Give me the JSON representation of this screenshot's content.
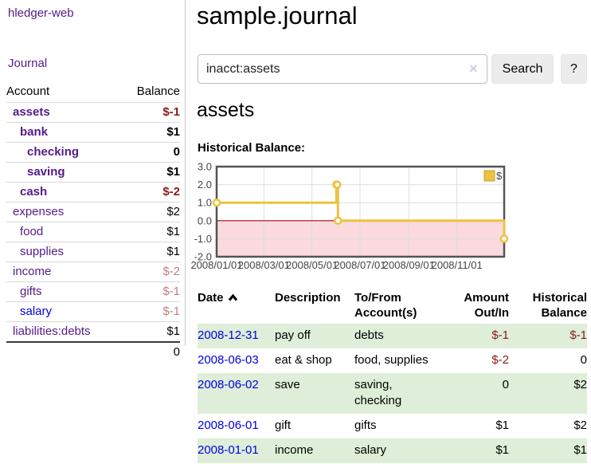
{
  "sidebar": {
    "app_title": "hledger-web",
    "journal_label": "Journal",
    "accounts_table": {
      "headers": {
        "account": "Account",
        "balance": "Balance"
      },
      "rows": [
        {
          "name": "assets",
          "indent": 1,
          "bold": true,
          "balance": "$-1",
          "balance_style": "neg-strong"
        },
        {
          "name": "bank",
          "indent": 2,
          "bold": true,
          "balance": "$1",
          "balance_style": "pos"
        },
        {
          "name": "checking",
          "indent": 3,
          "bold": true,
          "balance": "0",
          "balance_style": "pos"
        },
        {
          "name": "saving",
          "indent": 3,
          "bold": true,
          "balance": "$1",
          "balance_style": "pos"
        },
        {
          "name": "cash",
          "indent": 2,
          "bold": true,
          "balance": "$-2",
          "balance_style": "neg-strong"
        },
        {
          "name": "expenses",
          "indent": 1,
          "bold": false,
          "balance": "$2",
          "balance_style": "pos"
        },
        {
          "name": "food",
          "indent": 2,
          "bold": false,
          "balance": "$1",
          "balance_style": "pos"
        },
        {
          "name": "supplies",
          "indent": 2,
          "bold": false,
          "balance": "$1",
          "balance_style": "pos"
        },
        {
          "name": "income",
          "indent": 1,
          "bold": false,
          "balance": "$-2",
          "balance_style": "neg"
        },
        {
          "name": "gifts",
          "indent": 2,
          "bold": false,
          "balance": "$-1",
          "balance_style": "neg"
        },
        {
          "name": "salary",
          "indent": 2,
          "bold": false,
          "balance": "$-1",
          "balance_style": "neg",
          "link_color": "blue"
        },
        {
          "name": "liabilities:debts",
          "indent": 1,
          "bold": false,
          "balance": "$1",
          "balance_style": "pos"
        }
      ],
      "total": "0"
    }
  },
  "header": {
    "title": "sample.journal"
  },
  "search": {
    "value": "inacct:assets",
    "clear_icon": "×",
    "button_label": "Search",
    "help_label": "?"
  },
  "account_page": {
    "heading": "assets",
    "chart_label": "Historical Balance:"
  },
  "chart_data": {
    "type": "line",
    "title": "Historical Balance",
    "series": [
      {
        "name": "$",
        "color": "#edc240",
        "steps": true,
        "points": [
          [
            "2008-01-01",
            1
          ],
          [
            "2008-06-01",
            2
          ],
          [
            "2008-06-02",
            2
          ],
          [
            "2008-06-03",
            0
          ],
          [
            "2008-12-31",
            -1
          ]
        ]
      }
    ],
    "x_range": [
      "2008-01-01",
      "2008-12-31"
    ],
    "ylim": [
      -2,
      3
    ],
    "y_ticks": [
      3,
      2,
      1,
      0,
      -1,
      -2
    ],
    "y_tick_labels": [
      "3.0",
      "2.0",
      "1.0",
      "0.0",
      "-1.0",
      "-2.0"
    ],
    "x_tick_dates": [
      "2008-01-01",
      "2008-03-01",
      "2008-05-01",
      "2008-07-01",
      "2008-09-01",
      "2008-11-01"
    ],
    "x_tick_labels": [
      "2008/01/01",
      "2008/03/01",
      "2008/05/01",
      "2008/07/01",
      "2008/09/01",
      "2008/11/01"
    ],
    "grid": true,
    "legend_position": "top-right",
    "colors": {
      "grid_line": "#dddddd",
      "plot_border": "#545454",
      "negative_area_fill": "#fadadd",
      "zero_line": "#a40808",
      "marker_fill": "#ffffff",
      "legend_swatch_border": "#bfa133"
    }
  },
  "register": {
    "headers": {
      "date": "Date",
      "sort_icon": "chevron-up",
      "description": "Description",
      "accounts": "To/From Account(s)",
      "amount": "Amount Out/In",
      "balance": "Historical Balance"
    },
    "rows": [
      {
        "date": "2008-12-31",
        "description": "pay off",
        "accounts": "debts",
        "amount": "$-1",
        "amount_negative": true,
        "balance": "$-1",
        "balance_negative": true
      },
      {
        "date": "2008-06-03",
        "description": "eat & shop",
        "accounts": "food, supplies",
        "amount": "$-2",
        "amount_negative": true,
        "balance": "0",
        "balance_negative": false
      },
      {
        "date": "2008-06-02",
        "description": "save",
        "accounts": "saving, checking",
        "amount": "0",
        "amount_negative": false,
        "balance": "$2",
        "balance_negative": false
      },
      {
        "date": "2008-06-01",
        "description": "gift",
        "accounts": "gifts",
        "amount": "$1",
        "amount_negative": false,
        "balance": "$2",
        "balance_negative": false
      },
      {
        "date": "2008-01-01",
        "description": "income",
        "accounts": "salary",
        "amount": "$1",
        "amount_negative": false,
        "balance": "$1",
        "balance_negative": false
      }
    ]
  },
  "colors": {
    "link_purple": "#551a8b",
    "link_blue": "#0000e0",
    "negative_strong": "#8c1919",
    "negative_soft": "#c08080",
    "row_green": "#deeed8",
    "series_gold": "#edc240",
    "button_gray": "#ececec"
  }
}
